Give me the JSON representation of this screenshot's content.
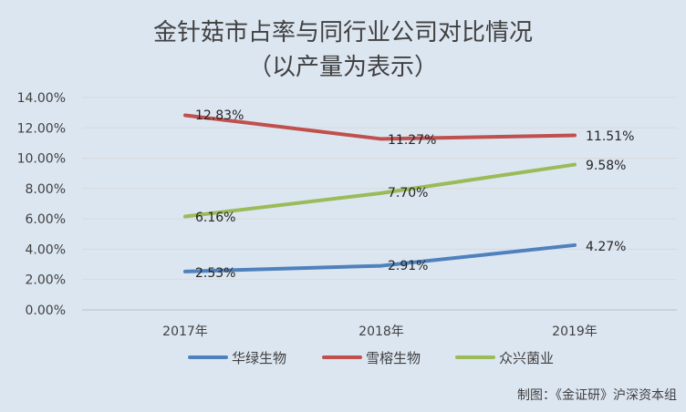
{
  "chart_data": {
    "type": "line",
    "title": "金针菇市占率与同行业公司对比情况",
    "subtitle": "（以产量为表示）",
    "categories": [
      "2017年",
      "2018年",
      "2019年"
    ],
    "series": [
      {
        "name": "华绿生物",
        "values": [
          2.53,
          2.91,
          4.27
        ],
        "labels": [
          "2.53%",
          "2.91%",
          "4.27%"
        ],
        "color": "#4f81bd"
      },
      {
        "name": "雪榕生物",
        "values": [
          12.83,
          11.27,
          11.51
        ],
        "labels": [
          "12.83%",
          "11.27%",
          "11.51%"
        ],
        "color": "#c0504d"
      },
      {
        "name": "众兴菌业",
        "values": [
          6.16,
          7.7,
          9.58
        ],
        "labels": [
          "6.16%",
          "7.70%",
          "9.58%"
        ],
        "color": "#9bbb59"
      }
    ],
    "ylim": [
      0,
      14
    ],
    "yticks": [
      0,
      2,
      4,
      6,
      8,
      10,
      12,
      14
    ],
    "ytick_labels": [
      "0.00%",
      "2.00%",
      "4.00%",
      "6.00%",
      "8.00%",
      "10.00%",
      "12.00%",
      "14.00%"
    ],
    "grid": true,
    "legend_position": "bottom"
  },
  "credit": "制图：《金证研》沪深资本组"
}
